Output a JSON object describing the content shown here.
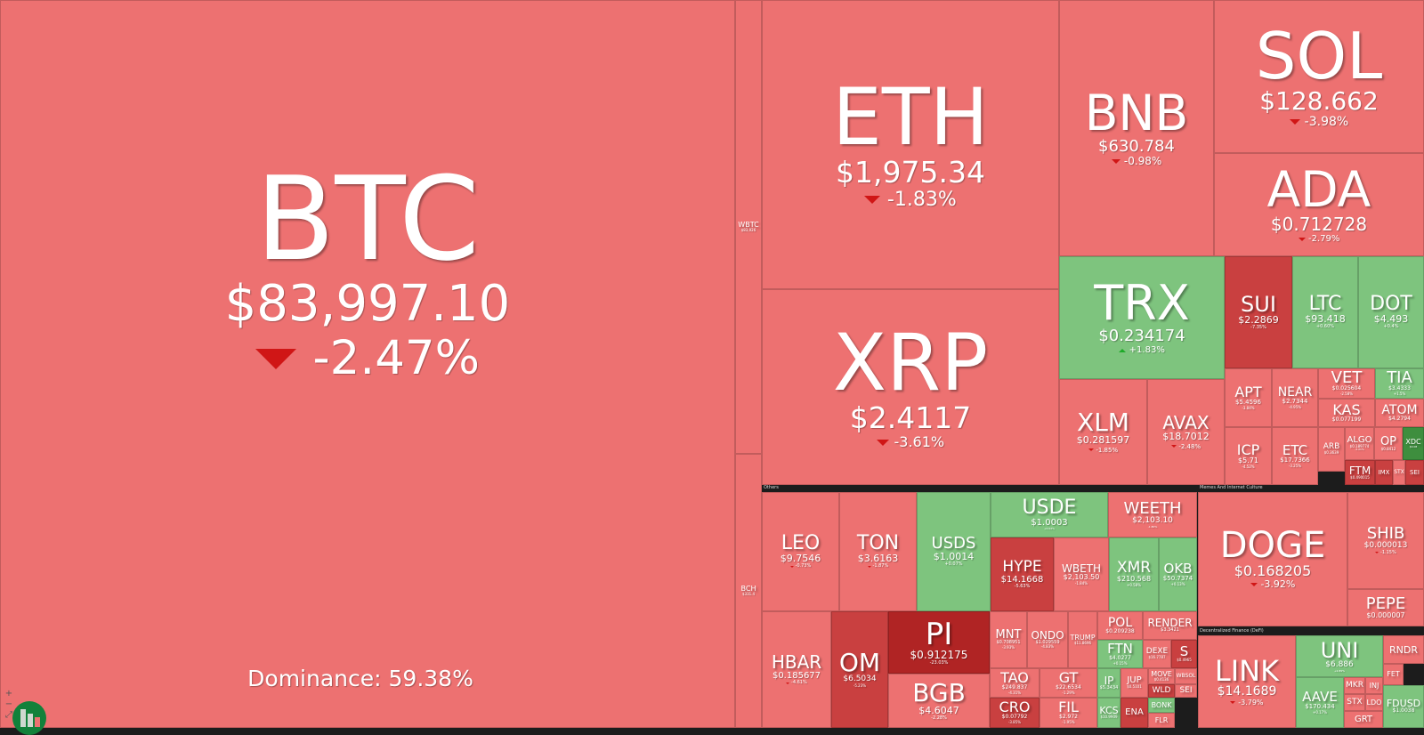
{
  "colors": {
    "red": "#ed7171",
    "green": "#7ec47e",
    "darkred": "#c94040",
    "deeper": "#b02424",
    "darkgreen": "#3e8e3e"
  },
  "dominance": "Dominance: 59.38%",
  "sections": {
    "others": "Others",
    "memes": "Memes And Internet Culture",
    "defi": "Decentralized Finance (DeFi)"
  },
  "zoom_controls": {
    "in": "+",
    "out": "−",
    "reset": "⤢"
  },
  "tiles": [
    {
      "id": "btc",
      "sym": "BTC",
      "price": "$83,997.10",
      "chg": "-2.47%",
      "dir": "down",
      "c": "red"
    },
    {
      "id": "wbtc",
      "sym": "WBTC",
      "price": "$83,926",
      "chg": "",
      "dir": "",
      "c": "red"
    },
    {
      "id": "bch",
      "sym": "BCH",
      "price": "$331.4",
      "chg": "",
      "dir": "",
      "c": "red"
    },
    {
      "id": "eth",
      "sym": "ETH",
      "price": "$1,975.34",
      "chg": "-1.83%",
      "dir": "down",
      "c": "red"
    },
    {
      "id": "xrp",
      "sym": "XRP",
      "price": "$2.4117",
      "chg": "-3.61%",
      "dir": "down",
      "c": "red"
    },
    {
      "id": "bnb",
      "sym": "BNB",
      "price": "$630.784",
      "chg": "-0.98%",
      "dir": "down",
      "c": "red"
    },
    {
      "id": "sol",
      "sym": "SOL",
      "price": "$128.662",
      "chg": "-3.98%",
      "dir": "down",
      "c": "red"
    },
    {
      "id": "ada",
      "sym": "ADA",
      "price": "$0.712728",
      "chg": "-2.79%",
      "dir": "down",
      "c": "red"
    },
    {
      "id": "trx",
      "sym": "TRX",
      "price": "$0.234174",
      "chg": "+1.83%",
      "dir": "up",
      "c": "green"
    },
    {
      "id": "sui",
      "sym": "SUI",
      "price": "$2.2869",
      "chg": "-7.35%",
      "dir": "",
      "c": "darkred"
    },
    {
      "id": "ltc",
      "sym": "LTC",
      "price": "$93.418",
      "chg": "+0.60%",
      "dir": "",
      "c": "green"
    },
    {
      "id": "dot",
      "sym": "DOT",
      "price": "$4.493",
      "chg": "+0.4%",
      "dir": "",
      "c": "green"
    },
    {
      "id": "xlm",
      "sym": "XLM",
      "price": "$0.281597",
      "chg": "-1.85%",
      "dir": "down",
      "c": "red"
    },
    {
      "id": "avax",
      "sym": "AVAX",
      "price": "$18.7012",
      "chg": "-2.48%",
      "dir": "down",
      "c": "red"
    },
    {
      "id": "apt",
      "sym": "APT",
      "price": "$5.4596",
      "chg": "-3.84%",
      "dir": "",
      "c": "red"
    },
    {
      "id": "near",
      "sym": "NEAR",
      "price": "$2.7344",
      "chg": "-4.95%",
      "dir": "",
      "c": "red"
    },
    {
      "id": "vet",
      "sym": "VET",
      "price": "$0.025604",
      "chg": "-2.58%",
      "dir": "",
      "c": "red"
    },
    {
      "id": "tia",
      "sym": "TIA",
      "price": "$3.4333",
      "chg": "+1.5%",
      "dir": "",
      "c": "green"
    },
    {
      "id": "kas",
      "sym": "KAS",
      "price": "$0.077199",
      "chg": "",
      "dir": "",
      "c": "red"
    },
    {
      "id": "atom",
      "sym": "ATOM",
      "price": "$4.2794",
      "chg": "",
      "dir": "",
      "c": "red"
    },
    {
      "id": "icp",
      "sym": "ICP",
      "price": "$5.71",
      "chg": "-4.52%",
      "dir": "",
      "c": "red"
    },
    {
      "id": "etc",
      "sym": "ETC",
      "price": "$17.7366",
      "chg": "-3.25%",
      "dir": "",
      "c": "red"
    },
    {
      "id": "arb",
      "sym": "ARB",
      "price": "$0.3639",
      "chg": "",
      "dir": "",
      "c": "red"
    },
    {
      "id": "algo",
      "sym": "ALGO",
      "price": "$0.189774",
      "chg": "-3.21%",
      "dir": "",
      "c": "red"
    },
    {
      "id": "op",
      "sym": "OP",
      "price": "$0.8412",
      "chg": "",
      "dir": "",
      "c": "red"
    },
    {
      "id": "xdc",
      "sym": "XDC",
      "price": "$0.08",
      "chg": "",
      "dir": "",
      "c": "darkgreen"
    },
    {
      "id": "ftm",
      "sym": "FTM",
      "price": "$0.490015",
      "chg": "",
      "dir": "",
      "c": "darkred"
    },
    {
      "id": "imx",
      "sym": "IMX",
      "price": "",
      "chg": "",
      "dir": "",
      "c": "darkred"
    },
    {
      "id": "stx",
      "sym": "STX",
      "price": "",
      "chg": "",
      "dir": "",
      "c": "red"
    },
    {
      "id": "sei",
      "sym": "SEI",
      "price": "",
      "chg": "",
      "dir": "",
      "c": "darkred"
    },
    {
      "id": "leo",
      "sym": "LEO",
      "price": "$9.7546",
      "chg": "-0.73%",
      "dir": "down",
      "c": "red"
    },
    {
      "id": "ton",
      "sym": "TON",
      "price": "$3.6163",
      "chg": "-1.87%",
      "dir": "down",
      "c": "red"
    },
    {
      "id": "usds",
      "sym": "USDS",
      "price": "$1.0014",
      "chg": "+0.07%",
      "dir": "",
      "c": "green"
    },
    {
      "id": "usde",
      "sym": "USDE",
      "price": "$1.0003",
      "chg": "+0.02%",
      "dir": "",
      "c": "green"
    },
    {
      "id": "weeth",
      "sym": "WEETH",
      "price": "$2,103.10",
      "chg": "-1.80%",
      "dir": "",
      "c": "red"
    },
    {
      "id": "hype",
      "sym": "HYPE",
      "price": "$14.1668",
      "chg": "-5.63%",
      "dir": "",
      "c": "darkred"
    },
    {
      "id": "wbeth",
      "sym": "WBETH",
      "price": "$2,103.50",
      "chg": "-1.84%",
      "dir": "",
      "c": "red"
    },
    {
      "id": "xmr",
      "sym": "XMR",
      "price": "$210.568",
      "chg": "+0.58%",
      "dir": "",
      "c": "green"
    },
    {
      "id": "okb",
      "sym": "OKB",
      "price": "$50.7374",
      "chg": "+0.13%",
      "dir": "",
      "c": "green"
    },
    {
      "id": "hbar",
      "sym": "HBAR",
      "price": "$0.185677",
      "chg": "-4.61%",
      "dir": "down",
      "c": "red"
    },
    {
      "id": "om",
      "sym": "OM",
      "price": "$6.5034",
      "chg": "-5.23%",
      "dir": "",
      "c": "darkred"
    },
    {
      "id": "pi",
      "sym": "PI",
      "price": "$0.912175",
      "chg": "-23.03%",
      "dir": "",
      "c": "deeper"
    },
    {
      "id": "bgb",
      "sym": "BGB",
      "price": "$4.6047",
      "chg": "-2.28%",
      "dir": "",
      "c": "red"
    },
    {
      "id": "mnt",
      "sym": "MNT",
      "price": "$0.708951",
      "chg": "-3.93%",
      "dir": "",
      "c": "red"
    },
    {
      "id": "ondo",
      "sym": "ONDO",
      "price": "$1.029559",
      "chg": "-4.83%",
      "dir": "",
      "c": "red"
    },
    {
      "id": "trump",
      "sym": "TRUMP",
      "price": "$11.8696",
      "chg": "",
      "dir": "",
      "c": "red"
    },
    {
      "id": "pol",
      "sym": "POL",
      "price": "$0.209238",
      "chg": "-4.41%",
      "dir": "",
      "c": "red"
    },
    {
      "id": "render",
      "sym": "RENDER",
      "price": "$3.3421",
      "chg": "",
      "dir": "",
      "c": "red"
    },
    {
      "id": "ftn",
      "sym": "FTN",
      "price": "$4.0277",
      "chg": "+0.15%",
      "dir": "",
      "c": "green"
    },
    {
      "id": "dexe",
      "sym": "DEXE",
      "price": "$16.7787",
      "chg": "",
      "dir": "",
      "c": "red"
    },
    {
      "id": "s",
      "sym": "S",
      "price": "$0.4965",
      "chg": "",
      "dir": "",
      "c": "darkred"
    },
    {
      "id": "tao",
      "sym": "TAO",
      "price": "$249.837",
      "chg": "-4.31%",
      "dir": "",
      "c": "red"
    },
    {
      "id": "gt",
      "sym": "GT",
      "price": "$22.6534",
      "chg": "-1.29%",
      "dir": "",
      "c": "red"
    },
    {
      "id": "ip",
      "sym": "IP",
      "price": "$5.3434",
      "chg": "",
      "dir": "",
      "c": "green"
    },
    {
      "id": "jup",
      "sym": "JUP",
      "price": "$0.5101",
      "chg": "",
      "dir": "",
      "c": "red"
    },
    {
      "id": "move",
      "sym": "MOVE",
      "price": "$0.4136",
      "chg": "",
      "dir": "",
      "c": "red"
    },
    {
      "id": "wbsol",
      "sym": "WBSOL",
      "price": "",
      "chg": "",
      "dir": "",
      "c": "red"
    },
    {
      "id": "wld",
      "sym": "WLD",
      "price": "",
      "chg": "",
      "dir": "",
      "c": "darkred"
    },
    {
      "id": "sei2",
      "sym": "SEI",
      "price": "",
      "chg": "",
      "dir": "",
      "c": "red"
    },
    {
      "id": "cro",
      "sym": "CRO",
      "price": "$0.07792",
      "chg": "-3.85%",
      "dir": "",
      "c": "darkred"
    },
    {
      "id": "fil",
      "sym": "FIL",
      "price": "$2.972",
      "chg": "-1.95%",
      "dir": "",
      "c": "red"
    },
    {
      "id": "kcs",
      "sym": "KCS",
      "price": "$10.9909",
      "chg": "",
      "dir": "",
      "c": "green"
    },
    {
      "id": "ena",
      "sym": "ENA",
      "price": "",
      "chg": "",
      "dir": "",
      "c": "darkred"
    },
    {
      "id": "bonk",
      "sym": "BONK",
      "price": "",
      "chg": "",
      "dir": "",
      "c": "green"
    },
    {
      "id": "flr",
      "sym": "FLR",
      "price": "",
      "chg": "",
      "dir": "",
      "c": "red"
    },
    {
      "id": "doge",
      "sym": "DOGE",
      "price": "$0.168205",
      "chg": "-3.92%",
      "dir": "down",
      "c": "red"
    },
    {
      "id": "shib",
      "sym": "SHIB",
      "price": "$0.000013",
      "chg": "-1.15%",
      "dir": "down",
      "c": "red"
    },
    {
      "id": "pepe",
      "sym": "PEPE",
      "price": "$0.000007",
      "chg": "",
      "dir": "",
      "c": "red"
    },
    {
      "id": "link",
      "sym": "LINK",
      "price": "$14.1689",
      "chg": "-3.79%",
      "dir": "down",
      "c": "red"
    },
    {
      "id": "uni",
      "sym": "UNI",
      "price": "$6.886",
      "chg": "+2.89%",
      "dir": "",
      "c": "green"
    },
    {
      "id": "rndr",
      "sym": "RNDR",
      "price": "",
      "chg": "",
      "dir": "",
      "c": "red"
    },
    {
      "id": "aave",
      "sym": "AAVE",
      "price": "$170.434",
      "chg": "+0.17%",
      "dir": "",
      "c": "green"
    },
    {
      "id": "mkr",
      "sym": "MKR",
      "price": "",
      "chg": "",
      "dir": "",
      "c": "red"
    },
    {
      "id": "inj",
      "sym": "INJ",
      "price": "",
      "chg": "",
      "dir": "",
      "c": "red"
    },
    {
      "id": "fet",
      "sym": "FET",
      "price": "",
      "chg": "",
      "dir": "",
      "c": "red"
    },
    {
      "id": "stx2",
      "sym": "STX",
      "price": "",
      "chg": "",
      "dir": "",
      "c": "red"
    },
    {
      "id": "ldo",
      "sym": "LDO",
      "price": "",
      "chg": "",
      "dir": "",
      "c": "red"
    },
    {
      "id": "grt",
      "sym": "GRT",
      "price": "",
      "chg": "",
      "dir": "",
      "c": "red"
    },
    {
      "id": "fdusd",
      "sym": "FDUSD",
      "price": "$1.0038",
      "chg": "",
      "dir": "",
      "c": "green"
    }
  ]
}
